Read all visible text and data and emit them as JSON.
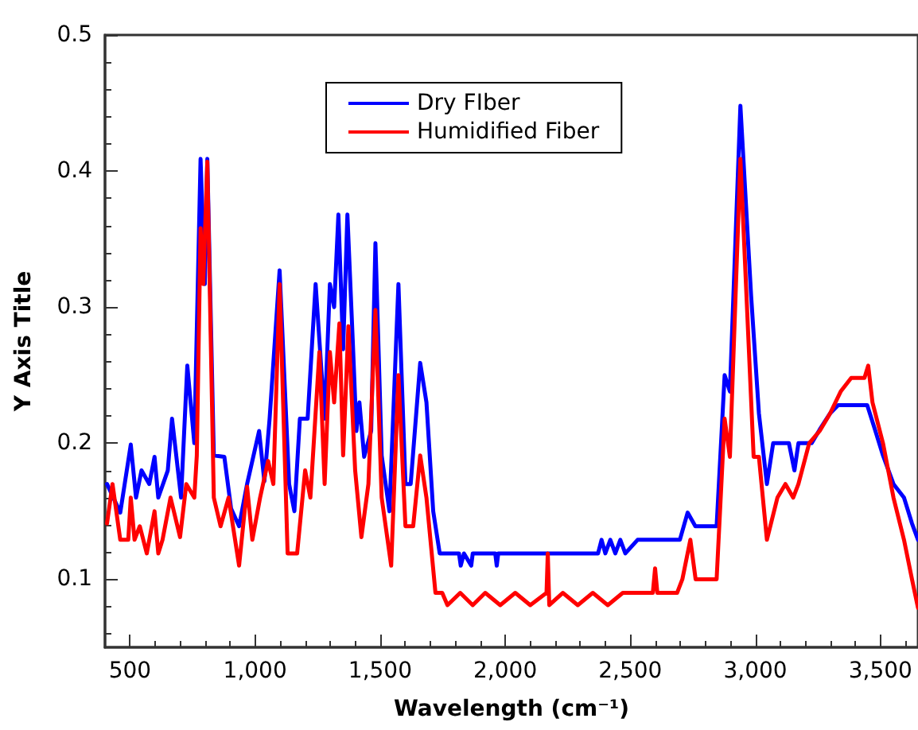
{
  "chart_data": {
    "type": "line",
    "xlabel": "Wavelength (cm⁻¹)",
    "ylabel": "Y Axis Title",
    "xlim": [
      400,
      3650
    ],
    "ylim": [
      0.05,
      0.5
    ],
    "xticks": [
      {
        "value": 500,
        "label": "500"
      },
      {
        "value": 1000,
        "label": "1,000"
      },
      {
        "value": 1500,
        "label": "1,500"
      },
      {
        "value": 2000,
        "label": "2,000"
      },
      {
        "value": 2500,
        "label": "2,500"
      },
      {
        "value": 3000,
        "label": "3,000"
      },
      {
        "value": 3500,
        "label": "3,500"
      }
    ],
    "yticks": [
      0.1,
      0.2,
      0.3,
      0.4,
      0.5
    ],
    "grid": false,
    "legend": "top",
    "marker": "none",
    "line_style": "solid",
    "series": [
      {
        "name": "Dry FIber",
        "color": "#0000ff",
        "x": [
          408,
          461,
          503,
          524,
          546,
          577,
          598,
          613,
          651,
          668,
          704,
          729,
          757,
          782,
          799,
          809,
          835,
          877,
          904,
          936,
          968,
          1016,
          1037,
          1058,
          1098,
          1136,
          1157,
          1179,
          1210,
          1242,
          1278,
          1299,
          1316,
          1333,
          1352,
          1369,
          1390,
          1405,
          1417,
          1436,
          1464,
          1481,
          1506,
          1537,
          1573,
          1601,
          1622,
          1660,
          1685,
          1712,
          1738,
          1815,
          1822,
          1835,
          1864,
          1870,
          1960,
          1966,
          1972,
          2371,
          2385,
          2400,
          2420,
          2440,
          2460,
          2480,
          2529,
          2698,
          2729,
          2760,
          2845,
          2877,
          2898,
          2940,
          2983,
          3014,
          3046,
          3071,
          3134,
          3156,
          3172,
          3225,
          3257,
          3299,
          3331,
          3447,
          3478,
          3510,
          3552,
          3594,
          3626,
          3650
        ],
        "values": [
          0.17,
          0.149,
          0.199,
          0.16,
          0.18,
          0.17,
          0.19,
          0.16,
          0.18,
          0.218,
          0.16,
          0.257,
          0.2,
          0.409,
          0.317,
          0.409,
          0.191,
          0.19,
          0.152,
          0.139,
          0.17,
          0.209,
          0.172,
          0.218,
          0.327,
          0.17,
          0.15,
          0.218,
          0.218,
          0.317,
          0.218,
          0.317,
          0.3,
          0.368,
          0.269,
          0.368,
          0.277,
          0.209,
          0.23,
          0.19,
          0.209,
          0.347,
          0.191,
          0.15,
          0.317,
          0.17,
          0.17,
          0.259,
          0.23,
          0.15,
          0.119,
          0.119,
          0.11,
          0.119,
          0.11,
          0.119,
          0.119,
          0.11,
          0.119,
          0.119,
          0.129,
          0.119,
          0.129,
          0.119,
          0.129,
          0.119,
          0.129,
          0.129,
          0.149,
          0.139,
          0.139,
          0.25,
          0.238,
          0.448,
          0.308,
          0.222,
          0.17,
          0.2,
          0.2,
          0.18,
          0.2,
          0.2,
          0.21,
          0.222,
          0.228,
          0.228,
          0.21,
          0.191,
          0.17,
          0.16,
          0.141,
          0.129
        ]
      },
      {
        "name": "Humidified Fiber",
        "color": "#ff0000",
        "x": [
          408,
          430,
          461,
          493,
          503,
          518,
          539,
          567,
          598,
          613,
          630,
          662,
          700,
          725,
          757,
          767,
          782,
          793,
          809,
          835,
          862,
          894,
          936,
          968,
          989,
          1020,
          1052,
          1073,
          1098,
          1130,
          1168,
          1200,
          1221,
          1257,
          1278,
          1299,
          1316,
          1337,
          1352,
          1373,
          1400,
          1425,
          1453,
          1481,
          1506,
          1544,
          1573,
          1601,
          1632,
          1660,
          1685,
          1721,
          1748,
          1769,
          1820,
          1870,
          1920,
          1980,
          2040,
          2100,
          2165,
          2170,
          2176,
          2230,
          2290,
          2350,
          2410,
          2470,
          2497,
          2590,
          2599,
          2608,
          2687,
          2708,
          2740,
          2761,
          2845,
          2877,
          2898,
          2940,
          2993,
          3014,
          3046,
          3088,
          3120,
          3151,
          3172,
          3215,
          3257,
          3299,
          3341,
          3383,
          3436,
          3451,
          3468,
          3510,
          3552,
          3594,
          3626,
          3650
        ],
        "values": [
          0.141,
          0.17,
          0.129,
          0.129,
          0.16,
          0.129,
          0.139,
          0.119,
          0.15,
          0.119,
          0.129,
          0.16,
          0.131,
          0.17,
          0.16,
          0.191,
          0.358,
          0.317,
          0.407,
          0.16,
          0.139,
          0.16,
          0.11,
          0.168,
          0.129,
          0.16,
          0.187,
          0.17,
          0.317,
          0.119,
          0.119,
          0.18,
          0.16,
          0.267,
          0.17,
          0.267,
          0.23,
          0.288,
          0.191,
          0.286,
          0.18,
          0.131,
          0.17,
          0.298,
          0.16,
          0.11,
          0.25,
          0.139,
          0.139,
          0.191,
          0.16,
          0.09,
          0.09,
          0.081,
          0.09,
          0.081,
          0.09,
          0.081,
          0.09,
          0.081,
          0.09,
          0.119,
          0.081,
          0.09,
          0.081,
          0.09,
          0.081,
          0.09,
          0.09,
          0.09,
          0.108,
          0.09,
          0.09,
          0.1,
          0.129,
          0.1,
          0.1,
          0.218,
          0.19,
          0.409,
          0.19,
          0.19,
          0.129,
          0.16,
          0.17,
          0.16,
          0.17,
          0.2,
          0.209,
          0.222,
          0.238,
          0.248,
          0.248,
          0.257,
          0.23,
          0.2,
          0.16,
          0.129,
          0.1,
          0.079
        ]
      }
    ]
  }
}
